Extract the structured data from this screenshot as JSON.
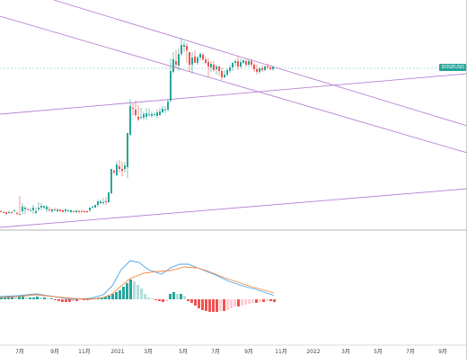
{
  "chart_data": {
    "type": "candlestick",
    "symbol_tag": "DOGEUSD",
    "colors": {
      "up": "#26a69a",
      "down": "#ef5350",
      "trendline": "#b784d6",
      "macd_line": "#4aa3e8",
      "signal_line": "#f5894a",
      "hist_up_strong": "#26a69a",
      "hist_up_weak": "#b2dfdb",
      "hist_down_strong": "#ef5350",
      "hist_down_weak": "#ffcdd2",
      "last_price_line": "#26a69a"
    },
    "x_tick_labels": [
      "7月",
      "9月",
      "11月",
      "2021",
      "3月",
      "5月",
      "7月",
      "9月",
      "11月",
      "2022",
      "3月",
      "5月",
      "7月",
      "9月"
    ],
    "x_range": [
      0,
      520
    ],
    "price_range": [
      0,
      256
    ],
    "candles": [
      [
        0,
        235,
        234,
        236,
        236
      ],
      [
        3,
        236,
        235,
        236,
        236
      ],
      [
        6,
        236,
        236,
        239,
        238
      ],
      [
        9,
        237,
        234,
        238,
        236
      ],
      [
        12,
        236,
        235,
        238,
        236
      ],
      [
        15,
        235,
        233,
        236,
        234
      ],
      [
        18,
        237,
        235,
        239,
        238
      ],
      [
        21,
        238,
        218,
        233,
        238
      ],
      [
        24,
        235,
        226,
        238,
        230
      ],
      [
        27,
        233,
        229,
        238,
        231
      ],
      [
        30,
        233,
        231,
        234,
        233
      ],
      [
        33,
        235,
        231,
        235,
        234
      ],
      [
        36,
        234,
        228,
        238,
        231
      ],
      [
        39,
        237,
        231,
        238,
        235
      ],
      [
        42,
        233,
        225,
        235,
        231
      ],
      [
        45,
        231,
        226,
        234,
        229
      ],
      [
        48,
        231,
        229,
        233,
        229
      ],
      [
        51,
        233,
        228,
        236,
        230
      ],
      [
        54,
        233,
        230,
        236,
        234
      ],
      [
        57,
        235,
        232,
        237,
        233
      ],
      [
        60,
        233,
        231,
        235,
        233
      ],
      [
        63,
        235,
        232,
        236,
        233
      ],
      [
        66,
        233,
        233,
        235,
        235
      ],
      [
        69,
        234,
        233,
        236,
        236
      ],
      [
        72,
        235,
        232,
        237,
        233
      ],
      [
        75,
        235,
        233,
        236,
        234
      ],
      [
        78,
        236,
        233,
        237,
        234
      ],
      [
        81,
        235,
        234,
        236,
        235
      ],
      [
        84,
        236,
        234,
        237,
        234
      ],
      [
        87,
        235,
        233,
        237,
        236
      ],
      [
        90,
        235,
        233,
        236,
        236
      ],
      [
        93,
        235,
        234,
        237,
        236
      ],
      [
        96,
        235,
        234,
        237,
        236
      ],
      [
        99,
        234,
        231,
        236,
        231
      ],
      [
        102,
        231,
        229,
        232,
        230
      ],
      [
        105,
        231,
        228,
        231,
        228
      ],
      [
        108,
        228,
        222,
        230,
        224
      ],
      [
        111,
        226,
        222,
        227,
        224
      ],
      [
        114,
        226,
        220,
        228,
        225
      ],
      [
        117,
        224,
        219,
        228,
        224
      ],
      [
        120,
        225,
        214,
        226,
        214
      ],
      [
        123,
        215,
        188,
        216,
        188
      ],
      [
        126,
        190,
        188,
        194,
        192
      ],
      [
        129,
        195,
        179,
        196,
        183
      ],
      [
        132,
        185,
        178,
        192,
        188
      ],
      [
        135,
        188,
        180,
        196,
        190
      ],
      [
        138,
        188,
        180,
        192,
        184
      ],
      [
        141,
        186,
        148,
        198,
        148
      ],
      [
        144,
        150,
        110,
        152,
        118
      ],
      [
        147,
        120,
        115,
        129,
        120
      ],
      [
        150,
        122,
        112,
        130,
        128
      ],
      [
        153,
        130,
        117,
        135,
        133
      ],
      [
        156,
        131,
        120,
        133,
        130
      ],
      [
        159,
        131,
        124,
        133,
        127
      ],
      [
        162,
        130,
        120,
        134,
        126
      ],
      [
        165,
        128,
        121,
        130,
        127
      ],
      [
        168,
        129,
        124,
        131,
        127
      ],
      [
        171,
        128,
        125,
        130,
        127
      ],
      [
        174,
        129,
        122,
        131,
        125
      ],
      [
        177,
        128,
        120,
        129,
        124
      ],
      [
        180,
        125,
        118,
        126,
        121
      ],
      [
        183,
        123,
        118,
        126,
        122
      ],
      [
        186,
        122,
        110,
        124,
        113
      ],
      [
        189,
        112,
        65,
        114,
        79
      ],
      [
        192,
        80,
        58,
        82,
        66
      ],
      [
        195,
        68,
        56,
        76,
        72
      ],
      [
        198,
        73,
        54,
        79,
        60
      ],
      [
        201,
        60,
        43,
        62,
        50
      ],
      [
        204,
        52,
        46,
        58,
        50
      ],
      [
        207,
        51,
        48,
        70,
        56
      ],
      [
        210,
        58,
        60,
        80,
        72
      ],
      [
        213,
        72,
        58,
        82,
        64
      ],
      [
        216,
        63,
        56,
        70,
        70
      ],
      [
        219,
        70,
        62,
        72,
        64
      ],
      [
        222,
        64,
        59,
        67,
        60
      ],
      [
        225,
        61,
        59,
        68,
        66
      ],
      [
        228,
        66,
        63,
        72,
        70
      ],
      [
        231,
        69,
        65,
        86,
        74
      ],
      [
        234,
        75,
        68,
        80,
        71
      ],
      [
        237,
        72,
        68,
        80,
        78
      ],
      [
        240,
        77,
        72,
        83,
        74
      ],
      [
        243,
        74,
        73,
        84,
        79
      ],
      [
        246,
        79,
        75,
        89,
        86
      ],
      [
        249,
        86,
        78,
        87,
        83
      ],
      [
        252,
        83,
        76,
        85,
        78
      ],
      [
        255,
        79,
        72,
        81,
        75
      ],
      [
        258,
        75,
        69,
        79,
        70
      ],
      [
        261,
        70,
        66,
        74,
        68
      ],
      [
        264,
        68,
        63,
        78,
        74
      ],
      [
        267,
        74,
        65,
        76,
        69
      ],
      [
        270,
        70,
        66,
        71,
        67
      ],
      [
        273,
        68,
        65,
        74,
        72
      ],
      [
        276,
        72,
        66,
        74,
        68
      ],
      [
        279,
        68,
        66,
        75,
        72
      ],
      [
        282,
        72,
        70,
        80,
        77
      ],
      [
        285,
        77,
        72,
        83,
        80
      ],
      [
        288,
        80,
        75,
        82,
        76
      ],
      [
        291,
        76,
        73,
        80,
        78
      ],
      [
        294,
        78,
        73,
        79,
        74
      ],
      [
        297,
        74,
        71,
        77,
        75
      ],
      [
        300,
        75,
        73,
        78,
        77
      ],
      [
        303,
        77,
        74,
        79,
        74
      ]
    ],
    "macd_line": [
      [
        0,
        330
      ],
      [
        20,
        329
      ],
      [
        40,
        327
      ],
      [
        60,
        330
      ],
      [
        80,
        333
      ],
      [
        100,
        332
      ],
      [
        115,
        328
      ],
      [
        125,
        318
      ],
      [
        135,
        300
      ],
      [
        145,
        290
      ],
      [
        155,
        292
      ],
      [
        165,
        300
      ],
      [
        180,
        305
      ],
      [
        190,
        298
      ],
      [
        200,
        294
      ],
      [
        210,
        294
      ],
      [
        225,
        300
      ],
      [
        240,
        306
      ],
      [
        255,
        313
      ],
      [
        270,
        318
      ],
      [
        285,
        322
      ],
      [
        300,
        327
      ],
      [
        305,
        329
      ]
    ],
    "signal_line": [
      [
        0,
        331
      ],
      [
        20,
        330
      ],
      [
        40,
        328
      ],
      [
        60,
        330
      ],
      [
        80,
        332
      ],
      [
        100,
        333
      ],
      [
        115,
        331
      ],
      [
        125,
        327
      ],
      [
        135,
        318
      ],
      [
        145,
        310
      ],
      [
        160,
        304
      ],
      [
        175,
        302
      ],
      [
        190,
        301
      ],
      [
        205,
        297
      ],
      [
        220,
        298
      ],
      [
        235,
        303
      ],
      [
        250,
        309
      ],
      [
        265,
        314
      ],
      [
        280,
        319
      ],
      [
        295,
        323
      ],
      [
        305,
        326
      ]
    ],
    "histogram": [
      [
        0,
        2
      ],
      [
        4,
        2
      ],
      [
        8,
        3
      ],
      [
        12,
        3
      ],
      [
        16,
        2
      ],
      [
        20,
        3
      ],
      [
        24,
        3
      ],
      [
        28,
        2
      ],
      [
        32,
        2
      ],
      [
        36,
        2
      ],
      [
        40,
        3
      ],
      [
        44,
        2
      ],
      [
        48,
        2
      ],
      [
        52,
        1
      ],
      [
        56,
        1
      ],
      [
        60,
        -1
      ],
      [
        64,
        -2
      ],
      [
        68,
        -3
      ],
      [
        72,
        -3
      ],
      [
        76,
        -3
      ],
      [
        80,
        -2
      ],
      [
        84,
        -2
      ],
      [
        88,
        -1
      ],
      [
        92,
        -1
      ],
      [
        96,
        -1
      ],
      [
        100,
        1
      ],
      [
        104,
        1
      ],
      [
        108,
        1
      ],
      [
        112,
        2
      ],
      [
        116,
        3
      ],
      [
        120,
        4
      ],
      [
        124,
        6
      ],
      [
        128,
        8
      ],
      [
        132,
        10
      ],
      [
        136,
        14
      ],
      [
        140,
        18
      ],
      [
        144,
        22
      ],
      [
        148,
        20
      ],
      [
        152,
        16
      ],
      [
        156,
        12
      ],
      [
        160,
        6
      ],
      [
        164,
        2
      ],
      [
        168,
        1
      ],
      [
        172,
        -1
      ],
      [
        176,
        -2
      ],
      [
        180,
        -3
      ],
      [
        184,
        -2
      ],
      [
        188,
        6
      ],
      [
        192,
        8
      ],
      [
        196,
        6
      ],
      [
        200,
        6
      ],
      [
        204,
        4
      ],
      [
        208,
        -2
      ],
      [
        212,
        -4
      ],
      [
        216,
        -7
      ],
      [
        220,
        -10
      ],
      [
        224,
        -12
      ],
      [
        228,
        -13
      ],
      [
        232,
        -14
      ],
      [
        236,
        -14
      ],
      [
        240,
        -14
      ],
      [
        244,
        -13
      ],
      [
        248,
        -13
      ],
      [
        252,
        -12
      ],
      [
        256,
        -10
      ],
      [
        260,
        -8
      ],
      [
        264,
        -8
      ],
      [
        268,
        -7
      ],
      [
        272,
        -6
      ],
      [
        276,
        -5
      ],
      [
        280,
        -4
      ],
      [
        284,
        -4
      ],
      [
        288,
        -3
      ],
      [
        292,
        -3
      ],
      [
        296,
        -2
      ],
      [
        300,
        -2
      ],
      [
        304,
        -3
      ]
    ],
    "trendlines": [
      [
        [
          60,
          0
        ],
        [
          520,
          140
        ]
      ],
      [
        [
          0,
          18
        ],
        [
          520,
          170
        ]
      ],
      [
        [
          0,
          127
        ],
        [
          520,
          82
        ]
      ],
      [
        [
          0,
          253
        ],
        [
          520,
          210
        ]
      ]
    ],
    "last_price_y": 76
  }
}
